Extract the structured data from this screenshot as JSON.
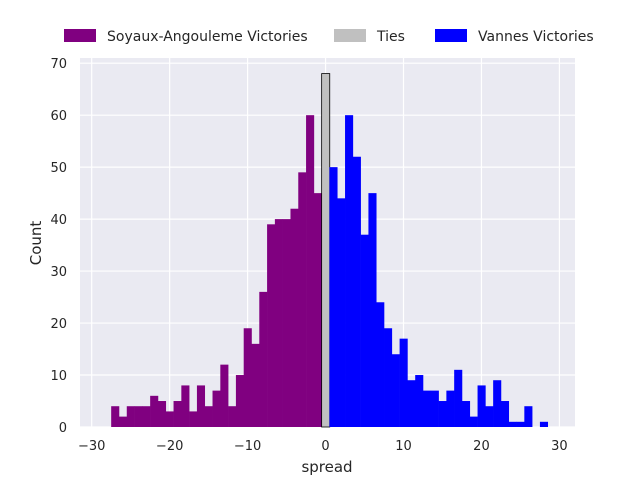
{
  "chart_data": {
    "type": "bar",
    "xlabel": "spread",
    "ylabel": "Count",
    "xlim": [
      -31.5,
      32
    ],
    "ylim": [
      0,
      71
    ],
    "xticks": [
      -30,
      -20,
      -10,
      0,
      10,
      20,
      30
    ],
    "yticks": [
      0,
      10,
      20,
      30,
      40,
      50,
      60,
      70
    ],
    "grid": true,
    "legend_position": "top, outside plot",
    "bin_width": 1,
    "series": [
      {
        "name": "Soyaux-Angouleme Victories",
        "color": "#800080",
        "x": [
          -27,
          -26,
          -25,
          -24,
          -23,
          -22,
          -21,
          -20,
          -19,
          -18,
          -17,
          -16,
          -15,
          -14,
          -13,
          -12,
          -11,
          -10,
          -9,
          -8,
          -7,
          -6,
          -5,
          -4,
          -3,
          -2,
          -1
        ],
        "values": [
          4,
          2,
          4,
          4,
          4,
          6,
          5,
          3,
          5,
          8,
          3,
          8,
          4,
          7,
          12,
          4,
          10,
          19,
          16,
          26,
          39,
          40,
          40,
          42,
          49,
          60,
          45
        ]
      },
      {
        "name": "Ties",
        "color": "#c0c0c0",
        "x": [
          0
        ],
        "values": [
          68
        ]
      },
      {
        "name": "Vannes Victories",
        "color": "#0000ff",
        "x": [
          1,
          2,
          3,
          4,
          5,
          6,
          7,
          8,
          9,
          10,
          11,
          12,
          13,
          14,
          15,
          16,
          17,
          18,
          19,
          20,
          21,
          22,
          23,
          24,
          25,
          26,
          27,
          28,
          29
        ],
        "values": [
          50,
          44,
          60,
          52,
          37,
          45,
          24,
          19,
          14,
          17,
          9,
          10,
          7,
          7,
          5,
          7,
          11,
          5,
          2,
          8,
          4,
          9,
          5,
          1,
          1,
          4,
          0,
          1,
          0
        ]
      }
    ],
    "x_tick_labels": [
      "−30",
      "−20",
      "−10",
      "0",
      "10",
      "20",
      "30"
    ],
    "y_tick_labels": [
      "0",
      "10",
      "20",
      "30",
      "40",
      "50",
      "60",
      "70"
    ]
  }
}
